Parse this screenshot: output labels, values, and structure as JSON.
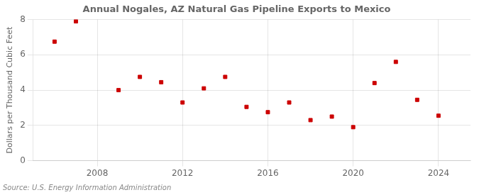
{
  "chart_data": {
    "type": "scatter",
    "title": "Annual Nogales, AZ Natural Gas Pipeline Exports to Mexico",
    "ylabel": "Dollars per Thousand Cubic Feet",
    "annotation": "Source: U.S. Energy Information Administration",
    "x": [
      2006,
      2007,
      2009,
      2010,
      2011,
      2012,
      2013,
      2014,
      2015,
      2016,
      2017,
      2018,
      2019,
      2020,
      2021,
      2022,
      2023,
      2024
    ],
    "values": [
      6.75,
      7.9,
      4.0,
      4.75,
      4.45,
      3.3,
      4.1,
      4.75,
      3.05,
      2.75,
      3.3,
      2.3,
      2.5,
      1.9,
      4.4,
      5.6,
      3.45,
      2.55
    ],
    "color": "#cc0000",
    "marker": "square",
    "xlim": [
      2005.0,
      2025.5
    ],
    "ylim": [
      0,
      8
    ],
    "xticks": [
      2008,
      2012,
      2016,
      2020,
      2024
    ],
    "yticks": [
      0,
      2,
      4,
      6,
      8
    ],
    "grid": true
  }
}
